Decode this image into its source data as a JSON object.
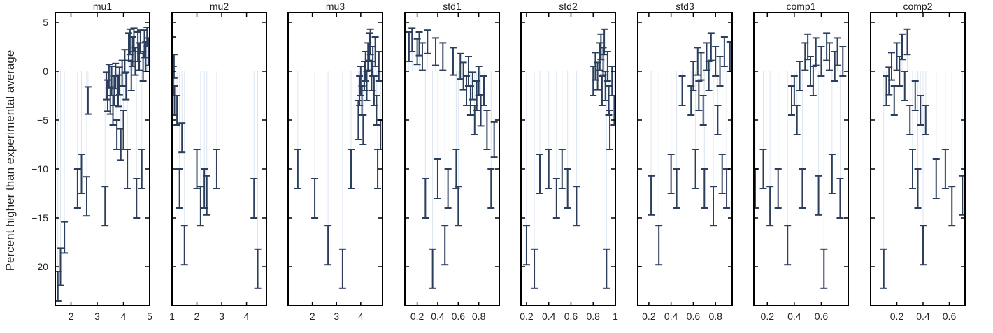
{
  "figure": {
    "ylabel": "Percent higher than experimental average",
    "colors": {
      "marker": "#2b3e5c",
      "whisker": "#dbe5f1",
      "frame": "#000000"
    }
  },
  "chart_data": {
    "type": "scatter",
    "shared_y": true,
    "ylim": [
      -24,
      6
    ],
    "yticks": [
      5,
      0,
      -5,
      -10,
      -15,
      -20
    ],
    "grid": false,
    "legend": "none",
    "panels": [
      {
        "title": "mu1",
        "xlim": [
          1.4,
          5.0
        ],
        "xticks": [
          2,
          3,
          4,
          5
        ],
        "points": [
          [
            1.5,
            -22.0,
            1.5
          ],
          [
            1.6,
            -20.0,
            1.9
          ],
          [
            1.75,
            -17.0,
            1.6
          ],
          [
            2.25,
            -12.0,
            2.0
          ],
          [
            2.4,
            -10.5,
            2.0
          ],
          [
            2.6,
            -12.8,
            2.0
          ],
          [
            2.65,
            -3.0,
            1.4
          ],
          [
            3.3,
            -13.8,
            2.0
          ],
          [
            3.35,
            -1.5,
            1.4
          ],
          [
            3.4,
            -2.5,
            1.6
          ],
          [
            3.45,
            -0.5,
            1.2
          ],
          [
            3.5,
            -3.0,
            1.4
          ],
          [
            3.55,
            -1.0,
            1.5
          ],
          [
            3.6,
            -4.0,
            1.5
          ],
          [
            3.65,
            -2.0,
            1.5
          ],
          [
            3.7,
            -0.5,
            1.3
          ],
          [
            3.75,
            -6.5,
            1.5
          ],
          [
            3.8,
            -2.0,
            1.6
          ],
          [
            3.85,
            -1.0,
            1.4
          ],
          [
            3.9,
            -7.5,
            1.6
          ],
          [
            3.95,
            -0.2,
            1.3
          ],
          [
            4.0,
            -6.0,
            2.0
          ],
          [
            4.05,
            1.0,
            1.2
          ],
          [
            4.1,
            -1.5,
            1.4
          ],
          [
            4.15,
            -10.0,
            2.0
          ],
          [
            4.2,
            2.5,
            1.4
          ],
          [
            4.25,
            3.0,
            1.3
          ],
          [
            4.3,
            -0.5,
            1.5
          ],
          [
            4.35,
            2.0,
            1.5
          ],
          [
            4.4,
            3.2,
            1.2
          ],
          [
            4.45,
            1.0,
            1.4
          ],
          [
            4.5,
            -13.0,
            2.0
          ],
          [
            4.55,
            2.5,
            1.5
          ],
          [
            4.6,
            1.5,
            1.4
          ],
          [
            4.65,
            3.0,
            1.2
          ],
          [
            4.7,
            -10.0,
            2.0
          ],
          [
            4.75,
            0.5,
            1.5
          ],
          [
            4.8,
            2.8,
            1.4
          ],
          [
            4.85,
            1.5,
            1.5
          ],
          [
            4.9,
            3.5,
            1.0
          ],
          [
            4.95,
            2.0,
            1.4
          ]
        ]
      },
      {
        "title": "mu2",
        "xlim": [
          1.0,
          4.8
        ],
        "xticks": [
          1,
          2,
          3,
          4
        ],
        "points": [
          [
            1.02,
            2.0,
            1.5
          ],
          [
            1.05,
            -1.0,
            1.5
          ],
          [
            1.08,
            0.5,
            1.2
          ],
          [
            1.1,
            -3.0,
            1.5
          ],
          [
            1.2,
            -4.0,
            1.5
          ],
          [
            1.3,
            -12.0,
            2.0
          ],
          [
            1.4,
            -6.8,
            1.5
          ],
          [
            1.5,
            -17.8,
            2.0
          ],
          [
            2.0,
            -10.0,
            2.0
          ],
          [
            2.15,
            -13.8,
            2.0
          ],
          [
            2.3,
            -12.0,
            2.0
          ],
          [
            2.4,
            -12.7,
            2.0
          ],
          [
            2.8,
            -10.0,
            2.0
          ],
          [
            4.3,
            -13.0,
            2.0
          ],
          [
            4.45,
            -20.2,
            2.0
          ]
        ]
      },
      {
        "title": "mu3",
        "xlim": [
          1.0,
          4.9
        ],
        "xticks": [
          2,
          3,
          4
        ],
        "points": [
          [
            1.4,
            -10.0,
            2.0
          ],
          [
            2.1,
            -13.0,
            2.0
          ],
          [
            2.65,
            -17.8,
            2.0
          ],
          [
            3.25,
            -20.2,
            2.0
          ],
          [
            3.6,
            -10.0,
            2.0
          ],
          [
            3.9,
            -5.0,
            2.0
          ],
          [
            3.95,
            -2.0,
            1.5
          ],
          [
            4.0,
            -1.0,
            1.5
          ],
          [
            4.05,
            -3.0,
            1.5
          ],
          [
            4.1,
            -6.0,
            1.5
          ],
          [
            4.15,
            -0.5,
            1.5
          ],
          [
            4.2,
            0.5,
            1.5
          ],
          [
            4.25,
            -1.5,
            1.5
          ],
          [
            4.3,
            1.5,
            1.4
          ],
          [
            4.35,
            2.5,
            1.4
          ],
          [
            4.4,
            3.0,
            1.3
          ],
          [
            4.45,
            -0.5,
            1.5
          ],
          [
            4.5,
            1.0,
            1.5
          ],
          [
            4.55,
            -2.0,
            1.5
          ],
          [
            4.6,
            2.0,
            1.5
          ],
          [
            4.65,
            -4.0,
            1.5
          ],
          [
            4.7,
            -10.0,
            2.0
          ],
          [
            4.75,
            0.5,
            1.5
          ],
          [
            4.82,
            -6.5,
            1.5
          ]
        ]
      },
      {
        "title": "std1",
        "xlim": [
          0.08,
          1.0
        ],
        "xticks": [
          0.2,
          0.4,
          0.6,
          0.8
        ],
        "points": [
          [
            0.12,
            2.5,
            1.5
          ],
          [
            0.15,
            3.2,
            1.2
          ],
          [
            0.2,
            2.0,
            1.3
          ],
          [
            0.22,
            2.8,
            1.2
          ],
          [
            0.25,
            1.5,
            1.4
          ],
          [
            0.28,
            -13.0,
            2.0
          ],
          [
            0.3,
            3.0,
            1.2
          ],
          [
            0.35,
            -20.2,
            2.0
          ],
          [
            0.38,
            2.0,
            1.4
          ],
          [
            0.4,
            -11.0,
            2.0
          ],
          [
            0.45,
            1.5,
            1.4
          ],
          [
            0.47,
            -17.8,
            2.0
          ],
          [
            0.5,
            -12.0,
            2.0
          ],
          [
            0.55,
            1.0,
            1.4
          ],
          [
            0.58,
            -10.0,
            2.0
          ],
          [
            0.6,
            -13.8,
            2.0
          ],
          [
            0.62,
            0.5,
            1.3
          ],
          [
            0.65,
            -0.5,
            1.4
          ],
          [
            0.68,
            -2.0,
            1.5
          ],
          [
            0.7,
            0.0,
            1.5
          ],
          [
            0.72,
            -3.0,
            1.5
          ],
          [
            0.74,
            -1.5,
            1.4
          ],
          [
            0.76,
            -5.0,
            1.5
          ],
          [
            0.78,
            -2.5,
            1.5
          ],
          [
            0.8,
            -1.0,
            1.5
          ],
          [
            0.82,
            -4.0,
            1.6
          ],
          [
            0.85,
            -2.0,
            1.5
          ],
          [
            0.88,
            -6.0,
            2.0
          ],
          [
            0.92,
            -12.0,
            2.0
          ],
          [
            0.95,
            -7.0,
            1.8
          ]
        ]
      },
      {
        "title": "std2",
        "xlim": [
          0.15,
          1.0
        ],
        "xticks": [
          0.2,
          0.4,
          0.6,
          0.8,
          1.0
        ],
        "tick_labels": [
          "0.2",
          "0.4",
          "0.6",
          "0.8",
          "1"
        ],
        "points": [
          [
            0.2,
            -17.8,
            2.0
          ],
          [
            0.27,
            -20.2,
            2.0
          ],
          [
            0.32,
            -10.5,
            2.0
          ],
          [
            0.4,
            -10.0,
            2.0
          ],
          [
            0.47,
            -13.0,
            2.0
          ],
          [
            0.52,
            -10.0,
            2.0
          ],
          [
            0.57,
            -12.0,
            2.0
          ],
          [
            0.65,
            -13.8,
            2.0
          ],
          [
            0.8,
            -1.0,
            1.5
          ],
          [
            0.82,
            0.5,
            1.4
          ],
          [
            0.84,
            -0.5,
            1.4
          ],
          [
            0.86,
            1.5,
            1.4
          ],
          [
            0.87,
            2.5,
            1.3
          ],
          [
            0.88,
            -2.0,
            1.5
          ],
          [
            0.89,
            1.0,
            1.4
          ],
          [
            0.9,
            3.0,
            1.3
          ],
          [
            0.91,
            -1.5,
            1.5
          ],
          [
            0.92,
            -20.2,
            2.0
          ],
          [
            0.93,
            0.5,
            1.5
          ],
          [
            0.94,
            -3.0,
            1.5
          ],
          [
            0.95,
            -6.0,
            2.0
          ],
          [
            0.97,
            -1.0,
            1.5
          ],
          [
            0.99,
            -4.0,
            1.5
          ]
        ]
      },
      {
        "title": "std3",
        "xlim": [
          0.1,
          0.95
        ],
        "xticks": [
          0.2,
          0.4,
          0.6,
          0.8
        ],
        "points": [
          [
            0.1,
            -22.0,
            2.0
          ],
          [
            0.22,
            -12.7,
            2.0
          ],
          [
            0.29,
            -17.8,
            2.0
          ],
          [
            0.4,
            -10.5,
            2.0
          ],
          [
            0.45,
            -12.0,
            2.0
          ],
          [
            0.5,
            -2.0,
            1.5
          ],
          [
            0.58,
            -3.0,
            1.5
          ],
          [
            0.6,
            -0.5,
            1.5
          ],
          [
            0.62,
            -10.0,
            2.0
          ],
          [
            0.64,
            1.0,
            1.4
          ],
          [
            0.65,
            -2.5,
            1.5
          ],
          [
            0.67,
            0.5,
            1.4
          ],
          [
            0.69,
            -4.0,
            1.5
          ],
          [
            0.7,
            -12.0,
            2.0
          ],
          [
            0.72,
            1.5,
            1.4
          ],
          [
            0.74,
            -0.5,
            1.5
          ],
          [
            0.76,
            2.5,
            1.4
          ],
          [
            0.78,
            -13.8,
            2.0
          ],
          [
            0.8,
            1.0,
            1.5
          ],
          [
            0.82,
            -5.0,
            1.5
          ],
          [
            0.84,
            0.0,
            1.5
          ],
          [
            0.86,
            -10.5,
            2.0
          ],
          [
            0.88,
            2.0,
            1.5
          ],
          [
            0.9,
            -12.0,
            2.0
          ],
          [
            0.93,
            1.5,
            1.5
          ]
        ]
      },
      {
        "title": "comp1",
        "xlim": [
          0.1,
          0.8
        ],
        "xticks": [
          0.2,
          0.4,
          0.6
        ],
        "points": [
          [
            0.11,
            -12.0,
            2.0
          ],
          [
            0.17,
            -10.0,
            2.0
          ],
          [
            0.22,
            -13.8,
            2.0
          ],
          [
            0.28,
            -12.0,
            2.0
          ],
          [
            0.35,
            -17.8,
            2.0
          ],
          [
            0.38,
            -3.0,
            1.5
          ],
          [
            0.4,
            -2.0,
            1.5
          ],
          [
            0.42,
            -5.0,
            1.5
          ],
          [
            0.44,
            -0.5,
            1.5
          ],
          [
            0.46,
            -12.0,
            2.0
          ],
          [
            0.48,
            1.5,
            1.4
          ],
          [
            0.5,
            2.5,
            1.3
          ],
          [
            0.52,
            0.0,
            1.5
          ],
          [
            0.54,
            -1.0,
            1.5
          ],
          [
            0.56,
            2.0,
            1.4
          ],
          [
            0.58,
            -12.7,
            2.0
          ],
          [
            0.6,
            1.0,
            1.5
          ],
          [
            0.62,
            -20.2,
            2.0
          ],
          [
            0.64,
            2.5,
            1.4
          ],
          [
            0.66,
            1.5,
            1.4
          ],
          [
            0.68,
            -10.5,
            2.0
          ],
          [
            0.7,
            0.5,
            1.5
          ],
          [
            0.72,
            2.0,
            1.4
          ],
          [
            0.74,
            -13.0,
            2.0
          ],
          [
            0.76,
            1.0,
            1.5
          ]
        ]
      },
      {
        "title": "comp2",
        "xlim": [
          0.0,
          0.72
        ],
        "xticks": [
          0.2,
          0.4,
          0.6
        ],
        "points": [
          [
            0.1,
            -20.2,
            2.0
          ],
          [
            0.12,
            -2.0,
            1.5
          ],
          [
            0.14,
            -1.0,
            1.4
          ],
          [
            0.16,
            0.5,
            1.4
          ],
          [
            0.18,
            -3.0,
            1.5
          ],
          [
            0.2,
            1.5,
            1.4
          ],
          [
            0.22,
            0.0,
            1.5
          ],
          [
            0.24,
            2.5,
            1.3
          ],
          [
            0.26,
            -1.5,
            1.5
          ],
          [
            0.28,
            3.0,
            1.3
          ],
          [
            0.3,
            -5.0,
            1.5
          ],
          [
            0.32,
            -10.0,
            2.0
          ],
          [
            0.34,
            -2.5,
            1.5
          ],
          [
            0.36,
            -12.0,
            2.0
          ],
          [
            0.38,
            -4.0,
            1.5
          ],
          [
            0.4,
            -17.8,
            2.0
          ],
          [
            0.42,
            -5.0,
            1.5
          ],
          [
            0.5,
            -11.0,
            2.0
          ],
          [
            0.57,
            -10.0,
            2.0
          ],
          [
            0.62,
            -13.8,
            2.0
          ],
          [
            0.7,
            -12.7,
            2.0
          ]
        ]
      }
    ]
  }
}
